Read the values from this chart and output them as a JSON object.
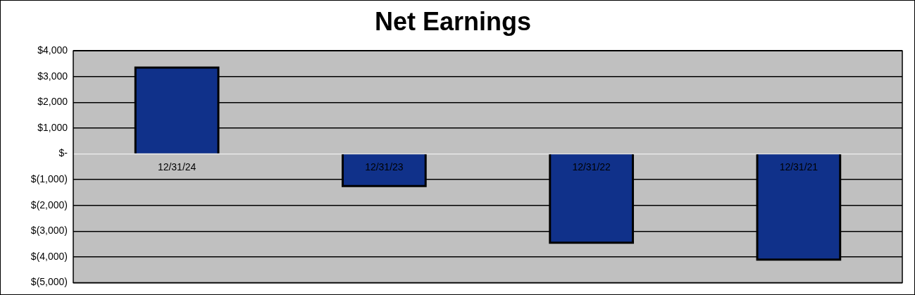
{
  "chart_data": {
    "type": "bar",
    "title": "Net Earnings",
    "categories": [
      "12/31/24",
      "12/31/23",
      "12/31/22",
      "12/31/21"
    ],
    "values": [
      3350,
      -1250,
      -3450,
      -4100
    ],
    "color": "#10318a",
    "ylim": [
      -5000,
      4000
    ],
    "yticks": [
      {
        "value": 4000,
        "label": "$4,000"
      },
      {
        "value": 3000,
        "label": "$3,000"
      },
      {
        "value": 2000,
        "label": "$2,000"
      },
      {
        "value": 1000,
        "label": "$1,000"
      },
      {
        "value": 0,
        "label": "$-"
      },
      {
        "value": -1000,
        "label": "$(1,000)"
      },
      {
        "value": -2000,
        "label": "$(2,000)"
      },
      {
        "value": -3000,
        "label": "$(3,000)"
      },
      {
        "value": -4000,
        "label": "$(4,000)"
      },
      {
        "value": -5000,
        "label": "$(5,000)"
      }
    ],
    "grid": "y"
  }
}
